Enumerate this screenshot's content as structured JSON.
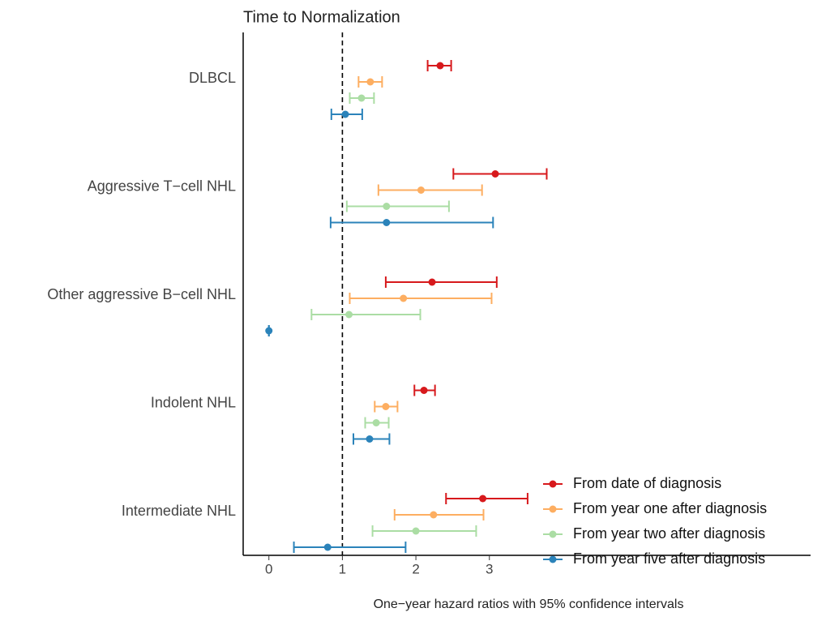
{
  "chart_data": {
    "type": "forest",
    "title": "Time to Normalization",
    "x_label": "One−year hazard ratios with 95% confidence intervals",
    "categories": [
      "DLBCL",
      "Aggressive T−cell NHL",
      "Other aggressive B−cell NHL",
      "Indolent NHL",
      "Intermediate NHL"
    ],
    "xlim": [
      -0.35,
      7.37
    ],
    "xticks": [
      0,
      1,
      2,
      3
    ],
    "reference_line": 1,
    "series": [
      {
        "name": "From date of diagnosis",
        "color": "#d7191c",
        "values": [
          2.33,
          3.08,
          2.22,
          2.11,
          2.91
        ],
        "lower": [
          2.16,
          2.51,
          1.59,
          1.98,
          2.41
        ],
        "upper": [
          2.48,
          3.78,
          3.1,
          2.26,
          3.52
        ]
      },
      {
        "name": "From year one after diagnosis",
        "color": "#fdae61",
        "values": [
          1.38,
          2.07,
          1.83,
          1.59,
          2.24
        ],
        "lower": [
          1.22,
          1.49,
          1.1,
          1.44,
          1.71
        ],
        "upper": [
          1.54,
          2.9,
          3.03,
          1.75,
          2.92
        ]
      },
      {
        "name": "From year two after diagnosis",
        "color": "#abdda4",
        "values": [
          1.26,
          1.6,
          1.09,
          1.46,
          2.0
        ],
        "lower": [
          1.1,
          1.06,
          0.58,
          1.31,
          1.41
        ],
        "upper": [
          1.43,
          2.45,
          2.06,
          1.63,
          2.82
        ]
      },
      {
        "name": "From year five after diagnosis",
        "color": "#2b83ba",
        "values": [
          1.04,
          1.6,
          0.0,
          1.37,
          0.8
        ],
        "lower": [
          0.85,
          0.84,
          0.0,
          1.15,
          0.34
        ],
        "upper": [
          1.27,
          3.05,
          0.0,
          1.64,
          1.86
        ]
      }
    ]
  }
}
